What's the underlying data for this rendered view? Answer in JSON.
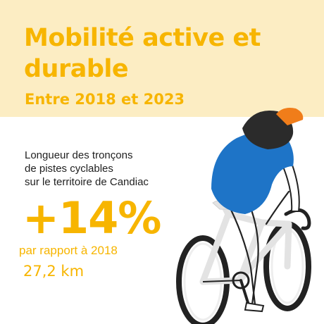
{
  "header": {
    "title": "Mobilité active et durable",
    "subtitle": "Entre 2018 et 2023"
  },
  "stat": {
    "description_lines": [
      "Longueur des tronçons",
      "de pistes cyclables",
      "sur le territoire de Candiac"
    ],
    "change": "+14%",
    "comparison": "par rapport à 2018",
    "length": "27,2 km"
  },
  "illustration": {
    "name": "cyclist-illustration",
    "colors": {
      "accent_yellow": "#f7b500",
      "band_cream": "#fcedc3",
      "jersey_blue": "#1e74c7",
      "helmet_orange": "#f07d1a",
      "hair_dark": "#2b2b2b",
      "frame_grey": "#e3e3e3",
      "tire_dark": "#222222"
    }
  }
}
